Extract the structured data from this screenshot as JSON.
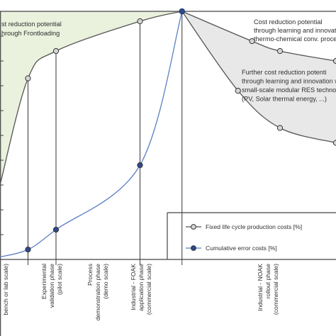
{
  "chart_data": {
    "type": "line",
    "title": "",
    "xlabel": "",
    "ylabel": "",
    "grid": false,
    "legend_position": "bottom-right",
    "x_phases": [
      "bench or lab scale)",
      [
        "Experimental",
        "validation phase",
        "(pilot scale)"
      ],
      [
        "Process",
        "demonstration phase",
        "(demo scale)"
      ],
      [
        "Industrial - FOAK",
        "application phase",
        "(commercial scale)"
      ],
      [
        "Industrial - NOAK",
        "rollout phase",
        "(commercial scale)"
      ]
    ],
    "series": [
      {
        "name": "Fixed life cycle production costs [%]",
        "color": "#555555",
        "marker_fill": "#d6d6d6",
        "x": [
          0,
          4,
          8,
          20,
          26,
          36,
          40,
          48
        ],
        "y": [
          30,
          73,
          84,
          96,
          100,
          88,
          84,
          80
        ],
        "markers": [
          4,
          8,
          20,
          26,
          36,
          40,
          48
        ]
      },
      {
        "name": "Cumulative error costs [%]",
        "color": "#5b7fc4",
        "marker_fill": "#2e4a8c",
        "x": [
          0,
          4,
          8,
          20,
          26
        ],
        "y": [
          1,
          4,
          12,
          38,
          100
        ],
        "markers": [
          4,
          8,
          20,
          26
        ]
      },
      {
        "name": "Further cost reduction potential",
        "color": "#555555",
        "marker_fill": "#d6d6d6",
        "x": [
          26,
          34,
          40,
          48
        ],
        "y": [
          100,
          68,
          53,
          47
        ],
        "markers": [
          34,
          40,
          48
        ]
      }
    ],
    "annotations": {
      "frontloading": [
        "st reduction potential",
        "hrough Frontloading"
      ],
      "thermochemical": [
        "Cost reduction potential",
        "through learning and innovation w",
        "thermo-chemical conv. processes"
      ],
      "res": [
        "Further cost reduction potenti",
        "through learning and innovation w",
        "small-scale modular RES technolo",
        "(PV, Solar thermal energy, ...)"
      ]
    },
    "colors": {
      "frontloading_fill": "#eaf1dd",
      "reduction_fill": "#e8e8e8",
      "axis": "#444444",
      "line_gray": "#555555",
      "line_blue": "#5b7fc4"
    }
  }
}
